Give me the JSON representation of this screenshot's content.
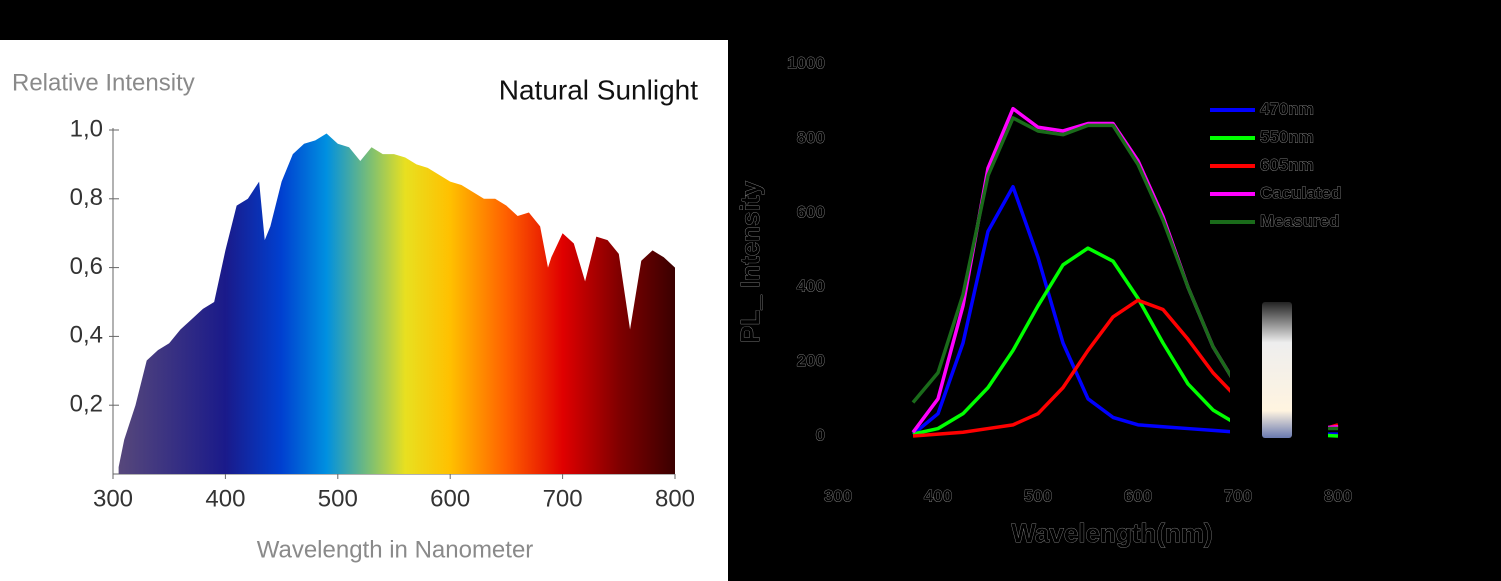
{
  "chart_data": [
    {
      "type": "area",
      "title": "Natural Sunlight",
      "y_label": "Relative Intensity",
      "x_label": "Wavelength in Nanometer",
      "x": [
        305,
        310,
        320,
        330,
        340,
        350,
        360,
        370,
        380,
        390,
        400,
        410,
        420,
        430,
        435,
        440,
        450,
        460,
        470,
        480,
        490,
        500,
        510,
        520,
        530,
        540,
        550,
        560,
        570,
        580,
        590,
        600,
        610,
        620,
        630,
        640,
        650,
        660,
        670,
        680,
        687,
        690,
        700,
        710,
        720,
        730,
        740,
        750,
        760,
        770,
        780,
        790,
        800
      ],
      "values": [
        0.02,
        0.1,
        0.2,
        0.33,
        0.36,
        0.38,
        0.42,
        0.45,
        0.48,
        0.5,
        0.65,
        0.78,
        0.8,
        0.85,
        0.68,
        0.72,
        0.85,
        0.93,
        0.96,
        0.97,
        0.99,
        0.96,
        0.95,
        0.91,
        0.95,
        0.93,
        0.93,
        0.92,
        0.9,
        0.89,
        0.87,
        0.85,
        0.84,
        0.82,
        0.8,
        0.8,
        0.78,
        0.75,
        0.76,
        0.72,
        0.6,
        0.63,
        0.7,
        0.67,
        0.56,
        0.69,
        0.68,
        0.64,
        0.42,
        0.62,
        0.65,
        0.63,
        0.6
      ],
      "xlim": [
        300,
        800
      ],
      "ylim": [
        0,
        1
      ],
      "xticks": [
        300,
        400,
        500,
        600,
        700,
        800
      ],
      "yticks": [
        {
          "value": 0.2,
          "label": "0,2"
        },
        {
          "value": 0.4,
          "label": "0,4"
        },
        {
          "value": 0.6,
          "label": "0,6"
        },
        {
          "value": 0.8,
          "label": "0,8"
        },
        {
          "value": 1,
          "label": "1,0"
        }
      ]
    },
    {
      "type": "line",
      "y_label": "PL_ Intensity",
      "x_label": "Wavelength(nm)",
      "x": [
        375,
        400,
        425,
        450,
        475,
        500,
        525,
        550,
        575,
        600,
        625,
        650,
        675,
        700,
        725,
        750,
        775,
        800
      ],
      "series": [
        {
          "name": "470nm",
          "color": "#0000ff",
          "values": [
            5,
            60,
            250,
            550,
            670,
            480,
            250,
            100,
            50,
            30,
            25,
            20,
            15,
            10,
            8,
            5,
            5,
            5
          ]
        },
        {
          "name": "550nm",
          "color": "#00ff00",
          "values": [
            5,
            20,
            60,
            130,
            230,
            350,
            460,
            505,
            470,
            370,
            250,
            140,
            70,
            30,
            10,
            5,
            3,
            0
          ]
        },
        {
          "name": "605nm",
          "color": "#ff0000",
          "values": [
            0,
            5,
            10,
            20,
            30,
            60,
            130,
            230,
            320,
            365,
            340,
            260,
            170,
            100,
            50,
            20,
            10,
            30
          ]
        },
        {
          "name": "Caculated",
          "color": "#ff00ff",
          "values": [
            10,
            100,
            350,
            720,
            880,
            830,
            820,
            840,
            840,
            740,
            590,
            400,
            240,
            130,
            60,
            30,
            20,
            25
          ]
        },
        {
          "name": "Measured",
          "color": "#1a6b1a",
          "values": [
            90,
            170,
            380,
            700,
            855,
            820,
            810,
            835,
            835,
            730,
            580,
            400,
            240,
            130,
            60,
            30,
            20,
            20
          ]
        }
      ],
      "xlim": [
        300,
        800
      ],
      "ylim": [
        0,
        1000
      ],
      "xticks": [
        300,
        400,
        500,
        600,
        700,
        800
      ],
      "yticks": [
        0,
        200,
        400,
        600,
        800,
        1000
      ]
    }
  ]
}
